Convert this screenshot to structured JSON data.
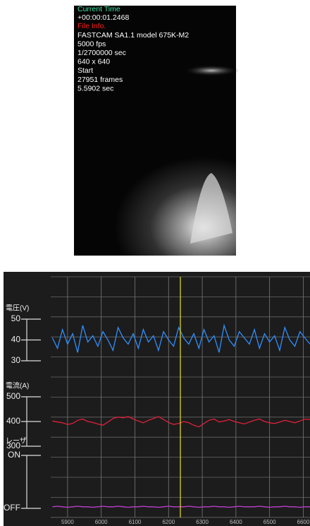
{
  "overlay": {
    "current_time_label": "Current Time",
    "current_time": "+00:00:01.2468",
    "file_info_label": "File Info.",
    "file_info": [
      "FASTCAM SA1.1 model 675K-M2",
      "5000 fps",
      "1/2700000 sec",
      "640 x 640",
      "Start",
      "27951 frames",
      "5.5902 sec"
    ]
  },
  "chart_data": {
    "type": "line",
    "x": [
      5855,
      5870,
      5885,
      5900,
      5915,
      5930,
      5945,
      5960,
      5975,
      5990,
      6005,
      6020,
      6035,
      6050,
      6065,
      6080,
      6095,
      6110,
      6125,
      6140,
      6155,
      6170,
      6185,
      6200,
      6215,
      6230,
      6245,
      6260,
      6275,
      6290,
      6305,
      6320,
      6335,
      6350,
      6365,
      6380,
      6395,
      6410,
      6425,
      6440,
      6455,
      6470,
      6485,
      6500,
      6515,
      6530,
      6545,
      6560,
      6575,
      6590,
      6605,
      6620
    ],
    "xlim": [
      5850,
      6620
    ],
    "xticks": [
      5900,
      6000,
      6100,
      6200,
      6300,
      6400,
      6500,
      6600
    ],
    "cursor": 6235,
    "cursor_color": "#e8e020",
    "grid": true,
    "panels": [
      {
        "y_label": "電圧(V)",
        "ylim": [
          30,
          50
        ],
        "yticks": [
          30,
          40,
          50
        ],
        "series": [
          {
            "color": "#2f8fff",
            "values": [
              41,
              36,
              45,
              38,
              43,
              34,
              47,
              39,
              42,
              37,
              44,
              40,
              35,
              46,
              41,
              38,
              43,
              36,
              45,
              39,
              42,
              35,
              44,
              40,
              37,
              46,
              41,
              38,
              43,
              36,
              45,
              39,
              42,
              34,
              47,
              40,
              37,
              44,
              41,
              38,
              45,
              36,
              43,
              39,
              42,
              35,
              46,
              40,
              37,
              44,
              41,
              38
            ]
          }
        ]
      },
      {
        "y_label": "電流(A)",
        "ylim": [
          300,
          500
        ],
        "yticks": [
          300,
          400,
          500
        ],
        "series": [
          {
            "color": "#e0203a",
            "values": [
              402,
              398,
              395,
              388,
              392,
              405,
              410,
              400,
              396,
              390,
              385,
              398,
              412,
              418,
              415,
              420,
              410,
              402,
              395,
              405,
              412,
              420,
              408,
              396,
              388,
              392,
              400,
              395,
              385,
              378,
              392,
              405,
              410,
              398,
              402,
              408,
              400,
              395,
              390,
              398,
              405,
              410,
              400,
              395,
              392,
              398,
              405,
              400,
              395,
              402,
              410,
              408
            ]
          }
        ]
      },
      {
        "y_label": "レーザ",
        "ylim": [
          0,
          1
        ],
        "yticks": [
          {
            "value": 0,
            "label": "OFF"
          },
          {
            "value": 1,
            "label": "ON"
          }
        ],
        "series": [
          {
            "color": "#c040d0",
            "values": [
              0.03,
              0.04,
              0.03,
              0.02,
              0.03,
              0.04,
              0.03,
              0.03,
              0.02,
              0.03,
              0.04,
              0.03,
              0.03,
              0.04,
              0.03,
              0.02,
              0.03,
              0.03,
              0.04,
              0.03,
              0.03,
              0.02,
              0.03,
              0.04,
              0.03,
              0.03,
              0.03,
              0.04,
              0.03,
              0.02,
              0.03,
              0.03,
              0.04,
              0.03,
              0.03,
              0.02,
              0.03,
              0.04,
              0.03,
              0.03,
              0.03,
              0.04,
              0.03,
              0.02,
              0.03,
              0.03,
              0.04,
              0.03,
              0.03,
              0.02,
              0.03,
              0.03
            ]
          }
        ]
      }
    ]
  }
}
